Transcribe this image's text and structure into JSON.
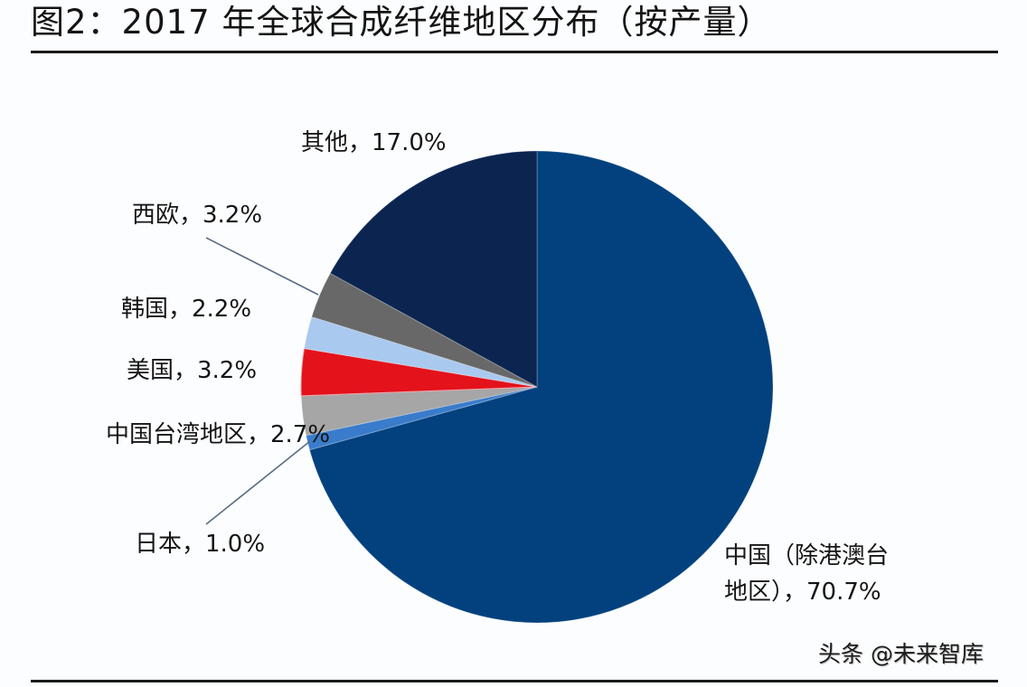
{
  "header": {
    "title": "图2：2017 年全球合成纤维地区分布（按产量）"
  },
  "watermark": "头条 @未来智库",
  "labels": {
    "china": "中国（除港澳台\n地区），70.7%",
    "japan": "日本，1.0%",
    "taiwan": "中国台湾地区，2.7%",
    "usa": "美国，3.2%",
    "korea": "韩国，2.2%",
    "west_europe": "西欧，3.2%",
    "other": "其他，17.0%"
  },
  "chart_data": {
    "type": "pie",
    "title": "2017 年全球合成纤维地区分布（按产量）",
    "start_angle": "12 o'clock, clockwise",
    "categories": [
      "中国（除港澳台地区）",
      "日本",
      "中国台湾地区",
      "美国",
      "韩国",
      "西欧",
      "其他"
    ],
    "values": [
      70.7,
      1.0,
      2.7,
      3.2,
      2.2,
      3.2,
      17.0
    ],
    "unit": "%",
    "colors": [
      "#02417e",
      "#3a7ccb",
      "#a6a6a6",
      "#e3121b",
      "#a9c9ee",
      "#686868",
      "#0b2550"
    ],
    "legend": "none (data labels with leader lines)"
  }
}
